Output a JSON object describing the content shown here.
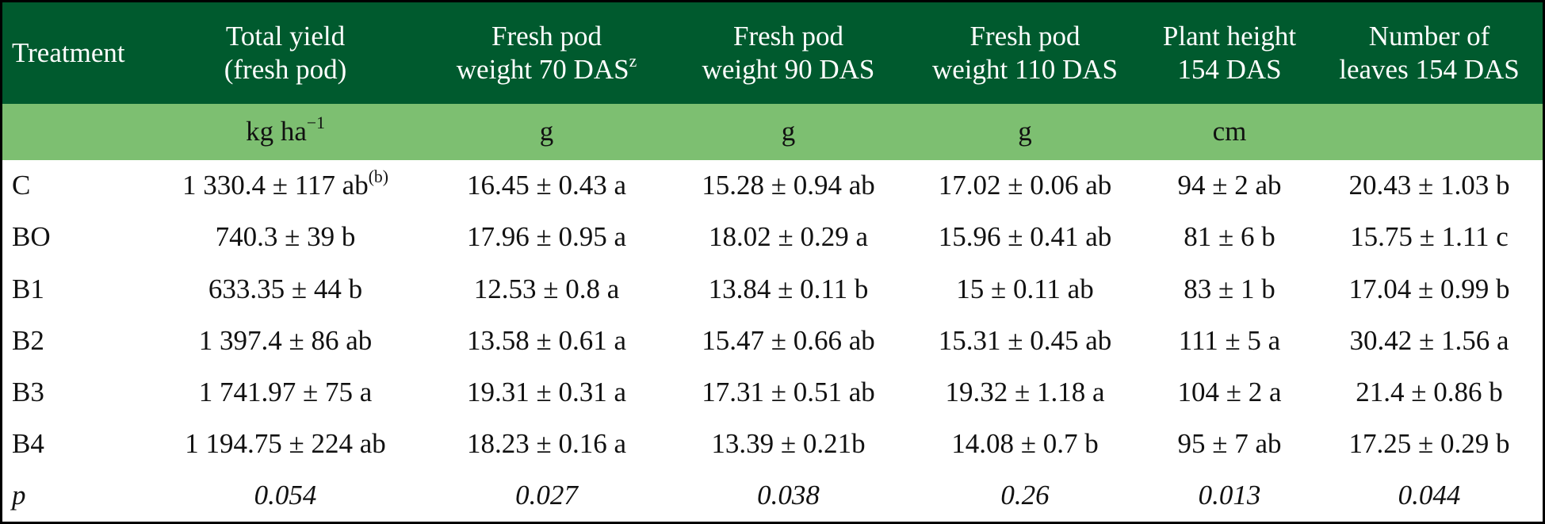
{
  "table": {
    "header": [
      [
        "Treatment"
      ],
      [
        "Total yield",
        "(fresh pod)"
      ],
      [
        "Fresh pod",
        {
          "text": "weight 70 DAS",
          "sup": "z"
        }
      ],
      [
        "Fresh pod",
        "weight 90 DAS"
      ],
      [
        "Fresh pod",
        "weight 110 DAS"
      ],
      [
        "Plant height",
        "154 DAS"
      ],
      [
        "Number of",
        "leaves 154 DAS"
      ]
    ],
    "units": [
      null,
      {
        "text": "kg ha",
        "sup": "−1"
      },
      "g",
      "g",
      "g",
      "cm",
      null
    ],
    "rows": [
      [
        "C",
        {
          "text": "1 330.4 ± 117 ab",
          "sup": "(b)"
        },
        "16.45 ± 0.43 a",
        "15.28 ± 0.94 ab",
        "17.02 ± 0.06 ab",
        "94 ± 2 ab",
        "20.43 ± 1.03 b"
      ],
      [
        "BO",
        "740.3 ± 39 b",
        "17.96 ± 0.95 a",
        "18.02 ± 0.29 a",
        "15.96 ± 0.41 ab",
        "81 ± 6 b",
        "15.75 ± 1.11 c"
      ],
      [
        "B1",
        "633.35 ± 44 b",
        "12.53 ± 0.8 a",
        "13.84 ± 0.11 b",
        "15 ± 0.11 ab",
        "83 ± 1 b",
        "17.04 ± 0.99 b"
      ],
      [
        "B2",
        "1 397.4 ± 86 ab",
        "13.58 ± 0.61 a",
        "15.47 ± 0.66 ab",
        "15.31 ± 0.45 ab",
        "111 ± 5 a",
        "30.42 ± 1.56 a"
      ],
      [
        "B3",
        "1 741.97 ± 75 a",
        "19.31 ± 0.31 a",
        "17.31 ± 0.51 ab",
        "19.32 ± 1.18 a",
        "104 ± 2 a",
        "21.4 ± 0.86 b"
      ],
      [
        "B4",
        "1 194.75 ± 224 ab",
        "18.23 ± 0.16 a",
        "13.39 ± 0.21b",
        "14.08 ± 0.7 b",
        "95 ± 7 ab",
        "17.25 ± 0.29 b"
      ],
      [
        "p",
        "0.054",
        "0.027",
        "0.038",
        "0.26",
        "0.013",
        "0.044"
      ]
    ]
  }
}
